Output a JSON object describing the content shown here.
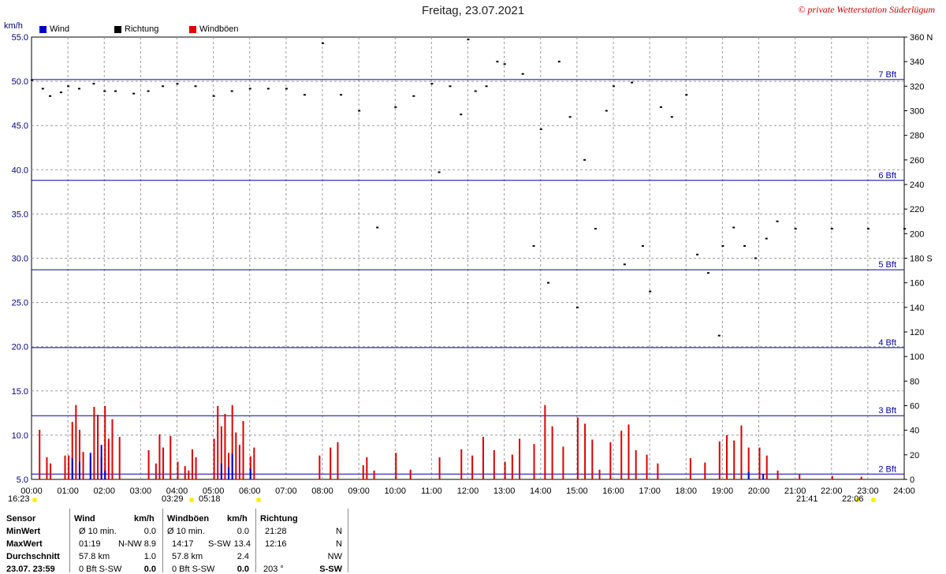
{
  "title": "Freitag, 23.07.2021",
  "credit": "© private Wetterstation Süderlügum",
  "y_unit": "km/h",
  "legend": [
    {
      "label": "Wind",
      "color": "#0000cc"
    },
    {
      "label": "Richtung",
      "color": "#000000"
    },
    {
      "label": "Windböen",
      "color": "#dd0000"
    }
  ],
  "chart_data": {
    "type": "bar",
    "x_ticks": [
      "00:00",
      "01:00",
      "02:00",
      "03:00",
      "04:00",
      "05:00",
      "06:00",
      "07:00",
      "08:00",
      "09:00",
      "10:00",
      "11:00",
      "12:00",
      "13:00",
      "14:00",
      "15:00",
      "16:00",
      "17:00",
      "18:00",
      "19:00",
      "20:00",
      "21:00",
      "22:00",
      "23:00",
      "24:00"
    ],
    "y_left_ticks": [
      "55.0",
      "50.0",
      "45.0",
      "40.0",
      "35.0",
      "30.0",
      "25.0",
      "20.0",
      "15.0",
      "10.0",
      "5.0"
    ],
    "y_left_range": [
      5,
      55
    ],
    "y_right_ticks": [
      "360 N",
      "340",
      "320",
      "300",
      "280",
      "260",
      "240",
      "220",
      "200",
      "180 S",
      "160",
      "140",
      "120",
      "100",
      "80",
      "60",
      "40",
      "20",
      "0"
    ],
    "y_right_range": [
      0,
      360
    ],
    "beaufort_lines": [
      {
        "label": "7 Bft",
        "kmh": 50.2
      },
      {
        "label": "6 Bft",
        "kmh": 38.8
      },
      {
        "label": "5 Bft",
        "kmh": 28.7
      },
      {
        "label": "4 Bft",
        "kmh": 19.9
      },
      {
        "label": "3 Bft",
        "kmh": 12.2
      },
      {
        "label": "2 Bft",
        "kmh": 5.6
      }
    ],
    "grid": true,
    "series": [
      {
        "name": "Wind",
        "color": "#0000cc",
        "x": [
          1.1,
          1.3,
          1.6,
          1.9,
          2.0,
          5.2,
          5.4,
          5.5,
          6.0,
          19.7,
          20.1
        ],
        "values": [
          7.4,
          7.0,
          8.0,
          8.9,
          6.0,
          6.8,
          6.4,
          7.9,
          6.2,
          5.8,
          5.6
        ]
      },
      {
        "name": "Windböen",
        "color": "#dd0000",
        "x": [
          0.2,
          0.4,
          0.5,
          0.9,
          1.0,
          1.1,
          1.2,
          1.3,
          1.4,
          1.6,
          1.7,
          1.8,
          1.9,
          2.0,
          2.1,
          2.2,
          2.4,
          3.2,
          3.4,
          3.5,
          3.6,
          3.8,
          4.0,
          4.2,
          4.3,
          4.4,
          4.5,
          5.0,
          5.1,
          5.2,
          5.3,
          5.4,
          5.5,
          5.6,
          5.7,
          5.8,
          6.0,
          6.1,
          7.9,
          8.2,
          8.4,
          9.1,
          9.2,
          9.4,
          10.0,
          10.4,
          11.2,
          11.8,
          12.1,
          12.4,
          12.7,
          13.0,
          13.2,
          13.4,
          13.8,
          14.1,
          14.3,
          14.6,
          15.0,
          15.2,
          15.4,
          15.6,
          15.9,
          16.2,
          16.4,
          16.6,
          16.9,
          17.2,
          18.1,
          18.5,
          18.9,
          19.1,
          19.3,
          19.5,
          19.7,
          20.0,
          20.2,
          20.5,
          21.1,
          22.0,
          22.8
        ],
        "values": [
          10.6,
          7.5,
          6.8,
          7.7,
          7.7,
          11.5,
          13.4,
          10.6,
          8.1,
          7.4,
          13.2,
          12.3,
          7.5,
          13.3,
          9.6,
          11.8,
          9.8,
          8.3,
          6.8,
          10.1,
          8.6,
          9.9,
          7.0,
          6.5,
          6.0,
          8.4,
          7.5,
          9.6,
          13.3,
          11.0,
          12.4,
          8.0,
          13.4,
          10.3,
          8.9,
          11.6,
          7.6,
          8.6,
          7.7,
          8.6,
          9.2,
          6.6,
          7.5,
          6.0,
          8.0,
          6.1,
          7.5,
          8.4,
          7.7,
          9.8,
          8.3,
          7.0,
          7.8,
          9.6,
          9.0,
          13.4,
          11.0,
          8.7,
          12.0,
          11.3,
          9.5,
          6.1,
          9.2,
          10.5,
          11.2,
          8.3,
          7.8,
          6.8,
          7.4,
          6.9,
          9.3,
          10.0,
          9.4,
          11.1,
          8.6,
          8.6,
          7.7,
          6.0,
          5.6,
          5.4,
          5.3
        ]
      },
      {
        "name": "Richtung",
        "color": "#000000",
        "x": [
          0.0,
          0.3,
          0.5,
          0.8,
          1.0,
          1.3,
          1.7,
          2.0,
          2.3,
          2.8,
          3.2,
          3.6,
          4.0,
          4.5,
          5.0,
          5.5,
          6.0,
          6.5,
          7.0,
          7.5,
          8.0,
          8.5,
          9.0,
          9.5,
          10.0,
          10.5,
          11.0,
          11.2,
          11.5,
          11.8,
          12.0,
          12.2,
          12.5,
          12.8,
          13.0,
          13.5,
          13.8,
          14.0,
          14.2,
          14.5,
          14.8,
          15.0,
          15.2,
          15.5,
          15.8,
          16.0,
          16.3,
          16.5,
          16.8,
          17.0,
          17.3,
          17.6,
          18.0,
          18.3,
          18.6,
          18.9,
          19.0,
          19.3,
          19.6,
          19.9,
          20.2,
          20.5,
          21.0,
          22.0,
          23.0,
          24.0
        ],
        "values": [
          325,
          318,
          312,
          315,
          320,
          318,
          322,
          316,
          316,
          314,
          316,
          320,
          322,
          320,
          312,
          316,
          318,
          318,
          318,
          313,
          355,
          313,
          300,
          205,
          303,
          312,
          322,
          250,
          320,
          297,
          358,
          316,
          320,
          340,
          338,
          330,
          190,
          285,
          160,
          340,
          295,
          140,
          260,
          204,
          300,
          320,
          175,
          323,
          190,
          153,
          303,
          295,
          313,
          183,
          168,
          117,
          190,
          205,
          190,
          180,
          196,
          210,
          204,
          204,
          204,
          204
        ]
      }
    ]
  },
  "below_axis": [
    {
      "text": "16:23",
      "marker": "#ffee00"
    },
    {
      "text": "03:29",
      "marker": "#ffee00"
    },
    {
      "text": "05:18",
      "marker": "#ffee00"
    },
    {
      "text": "21:41",
      "marker": "#ffee00"
    },
    {
      "text": "22:06",
      "marker": "#ffee00"
    }
  ],
  "stats": {
    "headers": [
      "Sensor",
      "Wind",
      "km/h",
      "Windböen",
      "km/h",
      "Richtung"
    ],
    "rows": [
      {
        "sensor": "MinWert",
        "w_label": "Ø 10 min.",
        "w_val": "0.0",
        "g_label": "Ø 10 min.",
        "g_val": "0.0",
        "d_time": "21:28",
        "d_dir": "N"
      },
      {
        "sensor": "MaxWert",
        "w_label": "01:19",
        "w_dir": "N-NW",
        "w_val": "8.9",
        "g_label": "14:17",
        "g_dir": "S-SW",
        "g_val": "13.4",
        "d_time": "12:16",
        "d_dir": "N"
      },
      {
        "sensor": "Durchschnitt",
        "w_label": "57.8 km",
        "w_val": "1.0",
        "g_label": "57.8 km",
        "g_val": "2.4",
        "d_time": "",
        "d_dir": "NW"
      },
      {
        "sensor": "23.07. 23:59",
        "w_label": "0 Bft S-SW",
        "w_val": "0.0",
        "g_label": "0 Bft S-SW",
        "g_val": "0.0",
        "d_time": "203 °",
        "d_dir": "S-SW"
      }
    ]
  }
}
